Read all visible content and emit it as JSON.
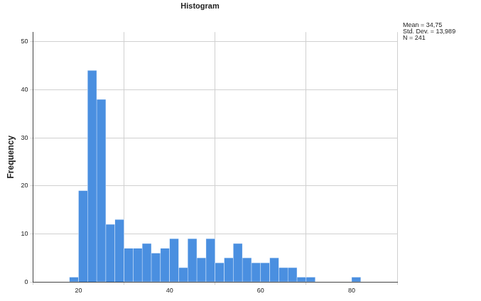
{
  "chart_data": {
    "type": "histogram",
    "title": "Histogram",
    "ylabel": "Frequency",
    "annotations": [
      "Mean = 34,75",
      "Std. Dev. = 13,989",
      "N = 241"
    ],
    "bins": [
      18,
      20,
      22,
      24,
      26,
      28,
      30,
      32,
      34,
      36,
      38,
      40,
      42,
      44,
      46,
      48,
      50,
      52,
      54,
      56,
      58,
      60,
      62,
      64,
      66,
      68,
      70,
      72,
      74,
      76,
      78,
      80,
      82
    ],
    "values": [
      1,
      19,
      44,
      38,
      12,
      13,
      7,
      7,
      8,
      6,
      7,
      9,
      3,
      9,
      5,
      9,
      4,
      5,
      8,
      5,
      4,
      4,
      5,
      3,
      3,
      1,
      1,
      0,
      0,
      0,
      0,
      1
    ],
    "color": "#4a8fe0",
    "xlim": [
      10,
      90
    ],
    "xticks": [
      20,
      40,
      60,
      80
    ],
    "ylim": [
      0,
      52
    ],
    "yticks": [
      0,
      10,
      20,
      30,
      40,
      50
    ],
    "grid": true
  }
}
